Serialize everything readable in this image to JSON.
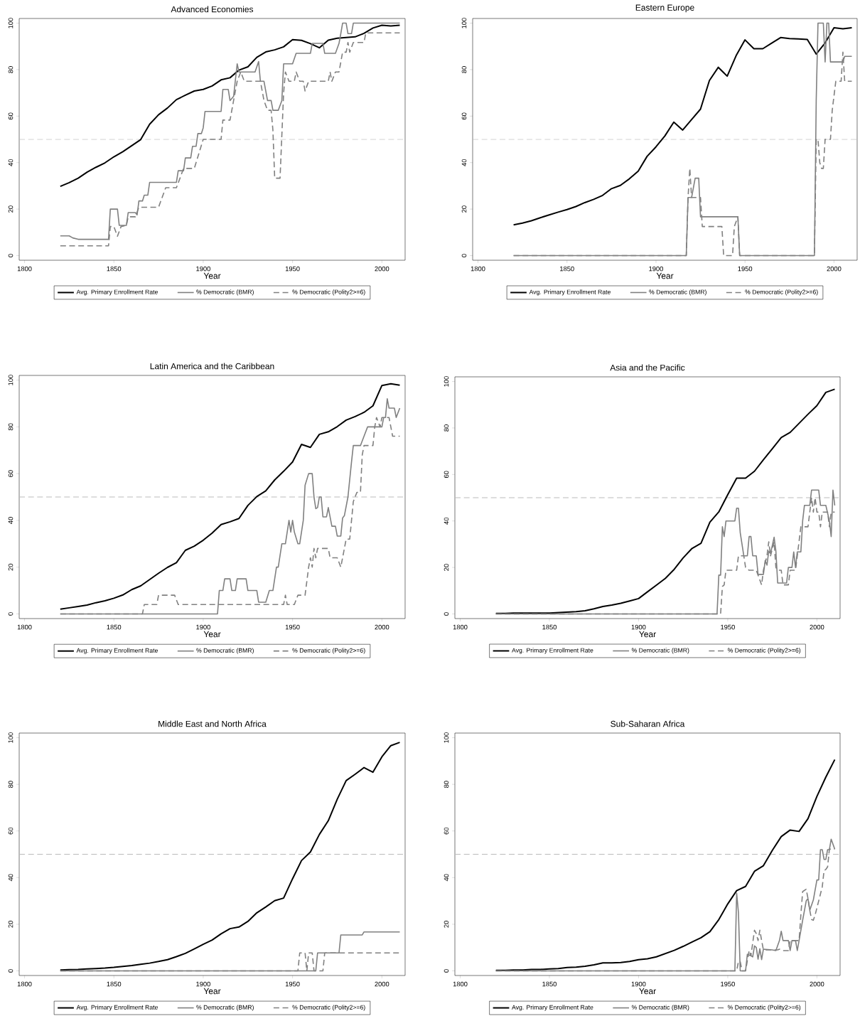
{
  "chart_data": [
    {
      "type": "line",
      "title": "Advanced Economies",
      "xlabel": "Year",
      "xlim": [
        1797,
        2013
      ],
      "ylim": [
        -2,
        102
      ],
      "xticks": [
        1800,
        1850,
        1900,
        1950,
        2000
      ],
      "yticks": [
        0,
        20,
        40,
        60,
        80,
        100
      ],
      "legend": "bottom",
      "ref_lines": [
        {
          "axis": "y",
          "value": 50,
          "color": "#bbbbbb",
          "line_style": "dashed"
        }
      ],
      "series": [
        {
          "name": "Avg. Primary Enrollment Rate",
          "color": "#000000",
          "line_style": "solid",
          "x": [
            1820,
            1825,
            1830,
            1835,
            1840,
            1845,
            1850,
            1855,
            1860,
            1865,
            1870,
            1875,
            1880,
            1885,
            1890,
            1895,
            1900,
            1905,
            1910,
            1915,
            1920,
            1925,
            1930,
            1935,
            1940,
            1945,
            1950,
            1955,
            1960,
            1965,
            1970,
            1975,
            1980,
            1985,
            1990,
            1995,
            2000,
            2005,
            2010
          ],
          "values": [
            29.8,
            31.4,
            33.3,
            35.9,
            38,
            39.9,
            42.5,
            44.7,
            47.3,
            49.9,
            56.5,
            60.6,
            63.5,
            67.1,
            69,
            70.8,
            71.5,
            73,
            75.6,
            76.5,
            79.8,
            81.2,
            85.3,
            87.6,
            88.5,
            89.8,
            92.9,
            92.6,
            91.2,
            89.4,
            92.7,
            93.5,
            93.8,
            94.1,
            95.6,
            97.9,
            99.1,
            98.8,
            99.1
          ]
        },
        {
          "name": "% Democratic (BMR)",
          "color": "#808080",
          "line_style": "solid",
          "x": [
            1820,
            1825,
            1827,
            1830,
            1847,
            1848,
            1852,
            1853,
            1857,
            1858,
            1862,
            1863,
            1864,
            1866,
            1867,
            1869,
            1870,
            1885,
            1886,
            1889,
            1890,
            1893,
            1894,
            1896,
            1897,
            1899,
            1900,
            1901,
            1910,
            1911,
            1914,
            1915,
            1917,
            1919,
            1920,
            1929,
            1931,
            1932,
            1934,
            1936,
            1938,
            1939,
            1942,
            1944,
            1945,
            1950,
            1952,
            1960,
            1961,
            1967,
            1968,
            1974,
            1976,
            1977,
            1978,
            1980,
            1981,
            1983,
            1984,
            2010
          ],
          "values": [
            8.5,
            8.5,
            7.6,
            7,
            7,
            20,
            20,
            13,
            13,
            18.5,
            18.5,
            17.5,
            23.5,
            23.5,
            26,
            26,
            31.5,
            31.5,
            36.5,
            36.5,
            42,
            42,
            47,
            47,
            52.5,
            52.5,
            55,
            62,
            62,
            71.5,
            71.5,
            66.7,
            68.5,
            82.5,
            79,
            79,
            83.5,
            75,
            75,
            66.7,
            66.7,
            62.5,
            62.5,
            66.7,
            82.5,
            82.5,
            87,
            87,
            91.3,
            91.3,
            87,
            87,
            91.3,
            95.5,
            100,
            100,
            95.5,
            95.5,
            100,
            100
          ]
        },
        {
          "name": "% Democratic (Polity2>=6)",
          "color": "#808080",
          "line_style": "dashed",
          "x": [
            1820,
            1847,
            1848,
            1850,
            1852,
            1854,
            1857,
            1858,
            1862,
            1864,
            1875,
            1877,
            1879,
            1885,
            1887,
            1889,
            1895,
            1898,
            1900,
            1910,
            1911,
            1915,
            1917,
            1919,
            1921,
            1923,
            1932,
            1934,
            1936,
            1938,
            1939,
            1940,
            1943,
            1945,
            1946,
            1948,
            1951,
            1952,
            1954,
            1956,
            1957,
            1959,
            1970,
            1971,
            1972,
            1974,
            1976,
            1978,
            1980,
            1981,
            1982,
            1984,
            1990,
            1991,
            2010
          ],
          "values": [
            4.2,
            4.2,
            12.5,
            12.5,
            8.3,
            12.5,
            13,
            16.7,
            16.7,
            20.8,
            20.8,
            25,
            29.2,
            29.2,
            33.3,
            37.5,
            37.5,
            45,
            50,
            50,
            58.3,
            58.3,
            66.7,
            75,
            79,
            75,
            75,
            66.7,
            62.5,
            62.5,
            54,
            33.3,
            33.3,
            70,
            79,
            75,
            75,
            79,
            75,
            75,
            70.8,
            75,
            75,
            79,
            75,
            79,
            79,
            87.5,
            87.5,
            91.7,
            87.5,
            91.7,
            91.7,
            95.8,
            95.8
          ]
        }
      ]
    },
    {
      "type": "line",
      "title": "Eastern Europe",
      "xlabel": "Year",
      "xlim": [
        1797,
        2013
      ],
      "ylim": [
        -2,
        102
      ],
      "xticks": [
        1800,
        1850,
        1900,
        1950,
        2000
      ],
      "yticks": [
        0,
        20,
        40,
        60,
        80,
        100
      ],
      "legend": "bottom",
      "ref_lines": [
        {
          "axis": "y",
          "value": 50,
          "color": "#bbbbbb",
          "line_style": "dashed"
        }
      ],
      "series": [
        {
          "name": "Avg. Primary Enrollment Rate",
          "color": "#000000",
          "line_style": "solid",
          "x": [
            1820,
            1825,
            1830,
            1835,
            1840,
            1845,
            1850,
            1855,
            1860,
            1865,
            1870,
            1875,
            1880,
            1885,
            1890,
            1895,
            1900,
            1905,
            1910,
            1915,
            1920,
            1925,
            1930,
            1935,
            1940,
            1945,
            1950,
            1955,
            1960,
            1965,
            1970,
            1975,
            1980,
            1985,
            1990,
            1995,
            2000,
            2005,
            2010
          ],
          "values": [
            13.2,
            14,
            15,
            16.3,
            17.5,
            18.7,
            19.8,
            21.1,
            22.8,
            24.2,
            25.9,
            28.8,
            30.2,
            33,
            36.3,
            42.7,
            46.8,
            51.5,
            57.4,
            54,
            58.5,
            63,
            75.3,
            81,
            77.2,
            86,
            92.8,
            89,
            89,
            91.4,
            93.8,
            93.4,
            93.2,
            93,
            86.7,
            91.5,
            98,
            97.6,
            98
          ]
        },
        {
          "name": "% Democratic (BMR)",
          "color": "#808080",
          "line_style": "solid",
          "x": [
            1820,
            1917,
            1918,
            1920,
            1922,
            1924,
            1925,
            1946,
            1947,
            1989,
            1990,
            1991,
            1994,
            1995,
            1996,
            1997,
            1998,
            2005,
            2006,
            2010
          ],
          "values": [
            0,
            0,
            25,
            25,
            33.3,
            33.3,
            16.7,
            16.7,
            0,
            0,
            66.7,
            100,
            100,
            83.3,
            100,
            100,
            83.3,
            83.3,
            85.7,
            85.7
          ]
        },
        {
          "name": "% Democratic (Polity2>=6)",
          "color": "#808080",
          "line_style": "dashed",
          "x": [
            1820,
            1917,
            1918,
            1919,
            1920,
            1925,
            1926,
            1937,
            1938,
            1943,
            1944,
            1946,
            1947,
            1989,
            1990,
            1991,
            1992,
            1993,
            1994,
            1995,
            1998,
            1999,
            2001,
            2004,
            2005,
            2006,
            2010
          ],
          "values": [
            0,
            0,
            25,
            37.5,
            25,
            25,
            12.5,
            12.5,
            0,
            0,
            12.5,
            16.7,
            0,
            0,
            50,
            50,
            40,
            37.5,
            37.5,
            50,
            50,
            62.5,
            75,
            75,
            87.5,
            75,
            75
          ]
        }
      ]
    },
    {
      "type": "line",
      "title": "Latin America and the Caribbean",
      "xlabel": "Year",
      "xlim": [
        1797,
        2013
      ],
      "ylim": [
        -2,
        102
      ],
      "xticks": [
        1800,
        1850,
        1900,
        1950,
        2000
      ],
      "yticks": [
        0,
        20,
        40,
        60,
        80,
        100
      ],
      "legend": "bottom",
      "ref_lines": [
        {
          "axis": "y",
          "value": 50,
          "color": "#bbbbbb",
          "line_style": "dashed"
        }
      ],
      "series": [
        {
          "name": "Avg. Primary Enrollment Rate",
          "color": "#000000",
          "line_style": "solid",
          "x": [
            1820,
            1825,
            1830,
            1835,
            1840,
            1845,
            1850,
            1855,
            1860,
            1865,
            1870,
            1875,
            1880,
            1885,
            1890,
            1895,
            1900,
            1905,
            1910,
            1915,
            1920,
            1925,
            1930,
            1935,
            1940,
            1945,
            1950,
            1955,
            1960,
            1965,
            1970,
            1975,
            1980,
            1985,
            1990,
            1995,
            2000,
            2005,
            2010
          ],
          "values": [
            2,
            2.6,
            3.2,
            3.8,
            4.8,
            5.6,
            6.7,
            8.1,
            10.4,
            12,
            14.7,
            17.4,
            19.9,
            21.9,
            27.2,
            29,
            31.5,
            34.6,
            38.2,
            39.4,
            40.8,
            46.4,
            50.2,
            52.6,
            57.3,
            61,
            65,
            72.5,
            71.2,
            76.8,
            77.9,
            80.1,
            82.9,
            84.4,
            86.2,
            89,
            97.7,
            98.4,
            97.8
          ]
        },
        {
          "name": "% Democratic (BMR)",
          "color": "#808080",
          "line_style": "solid",
          "x": [
            1820,
            1908,
            1909,
            1911,
            1912,
            1915,
            1916,
            1918,
            1919,
            1924,
            1925,
            1930,
            1931,
            1935,
            1937,
            1939,
            1940,
            1941,
            1942,
            1944,
            1946,
            1948,
            1949,
            1950,
            1951,
            1953,
            1954,
            1956,
            1957,
            1959,
            1961,
            1962,
            1963,
            1964,
            1965,
            1966,
            1967,
            1969,
            1970,
            1972,
            1974,
            1975,
            1977,
            1978,
            1979,
            1981,
            1983,
            1984,
            1988,
            1990,
            1992,
            2000,
            2001,
            2002,
            2003,
            2004,
            2007,
            2008,
            2010
          ],
          "values": [
            0,
            0,
            10,
            10,
            15,
            15,
            10,
            10,
            15,
            15,
            10,
            10,
            5,
            5,
            10,
            10,
            15,
            20,
            20,
            30,
            30,
            40,
            35,
            40,
            35,
            30,
            30,
            40,
            55,
            60,
            60,
            50,
            45,
            45.5,
            50,
            50,
            41.5,
            41.5,
            45.5,
            37.5,
            37.5,
            33.3,
            33.3,
            41,
            42,
            50,
            65,
            72,
            72,
            76,
            80,
            80,
            84,
            84,
            92,
            88,
            88,
            84,
            88
          ]
        },
        {
          "name": "% Democratic (Polity2>=6)",
          "color": "#808080",
          "line_style": "dashed",
          "x": [
            1820,
            1866,
            1867,
            1874,
            1875,
            1884,
            1886,
            1945,
            1946,
            1947,
            1951,
            1953,
            1957,
            1959,
            1960,
            1961,
            1962,
            1963,
            1964,
            1970,
            1971,
            1975,
            1977,
            1978,
            1980,
            1982,
            1984,
            1986,
            1988,
            1989,
            1990,
            1995,
            1996,
            1997,
            1999,
            2000,
            2004,
            2006,
            2010
          ],
          "values": [
            0,
            0,
            4,
            4,
            8,
            8,
            4,
            4,
            8,
            4,
            4,
            8,
            8,
            20,
            24,
            20,
            28,
            24,
            28,
            28,
            24,
            24,
            20,
            24,
            32,
            32,
            48,
            52,
            52,
            68,
            72,
            72,
            80,
            84,
            80,
            84,
            84,
            76,
            76
          ]
        }
      ]
    },
    {
      "type": "line",
      "title": "Asia and the Pacific",
      "xlabel": "Year",
      "xlim": [
        1797,
        2013
      ],
      "ylim": [
        -2,
        102
      ],
      "xticks": [
        1800,
        1850,
        1900,
        1950,
        2000
      ],
      "yticks": [
        0,
        20,
        40,
        60,
        80,
        100
      ],
      "legend": "bottom",
      "ref_lines": [
        {
          "axis": "y",
          "value": 50,
          "color": "#bbbbbb",
          "line_style": "dashed"
        }
      ],
      "series": [
        {
          "name": "Avg. Primary Enrollment Rate",
          "color": "#000000",
          "line_style": "solid",
          "x": [
            1820,
            1825,
            1830,
            1835,
            1840,
            1845,
            1850,
            1855,
            1860,
            1865,
            1870,
            1875,
            1880,
            1885,
            1890,
            1895,
            1900,
            1905,
            1910,
            1915,
            1920,
            1925,
            1930,
            1935,
            1940,
            1945,
            1950,
            1955,
            1960,
            1965,
            1970,
            1975,
            1980,
            1985,
            1990,
            1995,
            2000,
            2005,
            2010
          ],
          "values": [
            0.2,
            0.2,
            0.4,
            0.4,
            0.4,
            0.4,
            0.4,
            0.6,
            0.8,
            1,
            1.4,
            2.2,
            3.2,
            3.8,
            4.6,
            5.6,
            6.6,
            9.5,
            12.4,
            15.3,
            19.2,
            24.1,
            28.2,
            30.4,
            39.5,
            43.9,
            51.3,
            58.4,
            58.4,
            61.4,
            66.3,
            71.1,
            75.9,
            78.1,
            82,
            85.9,
            89.6,
            95.3,
            96.7
          ]
        },
        {
          "name": "% Democratic (BMR)",
          "color": "#808080",
          "line_style": "solid",
          "x": [
            1820,
            1944,
            1945,
            1946,
            1947,
            1948,
            1949,
            1954,
            1955,
            1956,
            1957,
            1959,
            1961,
            1962,
            1963,
            1964,
            1966,
            1967,
            1970,
            1971,
            1972,
            1973,
            1974,
            1976,
            1977,
            1978,
            1983,
            1984,
            1986,
            1987,
            1988,
            1989,
            1991,
            1992,
            1993,
            1996,
            1997,
            2001,
            2002,
            2005,
            2007,
            2008,
            2009,
            2010
          ],
          "values": [
            0,
            0,
            16.7,
            16.7,
            37.5,
            33.3,
            40,
            40,
            45.5,
            45.5,
            35,
            25,
            25,
            33.3,
            33.3,
            25,
            25,
            17,
            17,
            23,
            21,
            27,
            26,
            33,
            27,
            13.3,
            13.3,
            20,
            20,
            26.7,
            20,
            26.7,
            26.7,
            40,
            46.7,
            46.7,
            53.3,
            53.3,
            46.7,
            46.7,
            40,
            33.3,
            53.3,
            46.7
          ]
        },
        {
          "name": "% Democratic (Polity2>=6)",
          "color": "#808080",
          "line_style": "dashed",
          "x": [
            1820,
            1946,
            1947,
            1948,
            1949,
            1955,
            1956,
            1959,
            1960,
            1962,
            1966,
            1967,
            1969,
            1970,
            1971,
            1972,
            1973,
            1974,
            1976,
            1977,
            1978,
            1980,
            1981,
            1984,
            1985,
            1988,
            1989,
            1991,
            1995,
            1997,
            1998,
            1999,
            2000,
            2001,
            2002,
            2003,
            2006,
            2007,
            2008,
            2010
          ],
          "values": [
            0,
            0,
            11.8,
            12.5,
            18.8,
            18.8,
            25,
            25,
            20,
            18.8,
            18.8,
            16.7,
            12.5,
            18.8,
            22,
            25,
            31,
            25,
            31,
            20,
            18.8,
            18.8,
            12.5,
            12.5,
            18.8,
            18.8,
            25,
            37.5,
            37.5,
            50,
            43.8,
            50,
            43.8,
            43.8,
            37.5,
            43.8,
            43.8,
            37.5,
            43.8,
            43.8
          ]
        }
      ]
    },
    {
      "type": "line",
      "title": "Middle East and North Africa",
      "xlabel": "Year",
      "xlim": [
        1797,
        2013
      ],
      "ylim": [
        -2,
        102
      ],
      "xticks": [
        1800,
        1850,
        1900,
        1950,
        2000
      ],
      "yticks": [
        0,
        20,
        40,
        60,
        80,
        100
      ],
      "legend": "bottom",
      "ref_lines": [
        {
          "axis": "y",
          "value": 50,
          "color": "#bbbbbb",
          "line_style": "dashed"
        }
      ],
      "series": [
        {
          "name": "Avg. Primary Enrollment Rate",
          "color": "#000000",
          "line_style": "solid",
          "x": [
            1820,
            1825,
            1830,
            1835,
            1840,
            1845,
            1850,
            1855,
            1860,
            1865,
            1870,
            1875,
            1880,
            1885,
            1890,
            1895,
            1900,
            1905,
            1910,
            1915,
            1920,
            1925,
            1930,
            1935,
            1940,
            1945,
            1950,
            1955,
            1960,
            1965,
            1970,
            1975,
            1980,
            1985,
            1990,
            1995,
            2000,
            2005,
            2010
          ],
          "values": [
            0.4,
            0.5,
            0.6,
            0.8,
            1,
            1.2,
            1.5,
            1.9,
            2.3,
            2.8,
            3.3,
            4,
            4.8,
            6.1,
            7.5,
            9.4,
            11.4,
            13.2,
            15.9,
            18.1,
            18.8,
            21.2,
            24.9,
            27.4,
            30.1,
            31.2,
            39.5,
            47.3,
            51,
            58.5,
            64.4,
            73.6,
            81.6,
            84.3,
            87.2,
            85.2,
            91.8,
            96.6,
            98
          ]
        },
        {
          "name": "% Democratic (BMR)",
          "color": "#808080",
          "line_style": "solid",
          "x": [
            1820,
            1963,
            1964,
            1976,
            1977,
            1989,
            1990,
            2010
          ],
          "values": [
            0,
            0,
            7.7,
            7.7,
            15.4,
            15.4,
            16.7,
            16.7
          ]
        },
        {
          "name": "% Democratic (Polity2>=6)",
          "color": "#808080",
          "line_style": "dashed",
          "x": [
            1820,
            1953,
            1954,
            1957,
            1958,
            1959,
            1961,
            1962,
            1967,
            1968,
            2010
          ],
          "values": [
            0,
            0,
            7.7,
            7.7,
            0,
            7.7,
            7.7,
            0,
            0,
            7.7,
            7.7
          ]
        }
      ]
    },
    {
      "type": "line",
      "title": "Sub-Saharan Africa",
      "xlabel": "Year",
      "xlim": [
        1797,
        2013
      ],
      "ylim": [
        -2,
        102
      ],
      "xticks": [
        1800,
        1850,
        1900,
        1950,
        2000
      ],
      "yticks": [
        0,
        20,
        40,
        60,
        80,
        100
      ],
      "legend": "bottom",
      "ref_lines": [
        {
          "axis": "y",
          "value": 50,
          "color": "#bbbbbb",
          "line_style": "dashed"
        }
      ],
      "series": [
        {
          "name": "Avg. Primary Enrollment Rate",
          "color": "#000000",
          "line_style": "solid",
          "x": [
            1820,
            1825,
            1830,
            1835,
            1840,
            1845,
            1850,
            1855,
            1860,
            1865,
            1870,
            1875,
            1880,
            1885,
            1890,
            1895,
            1900,
            1905,
            1910,
            1915,
            1920,
            1925,
            1930,
            1935,
            1940,
            1945,
            1950,
            1955,
            1960,
            1965,
            1970,
            1975,
            1980,
            1985,
            1990,
            1995,
            2000,
            2005,
            2010
          ],
          "values": [
            0.2,
            0.2,
            0.4,
            0.4,
            0.6,
            0.6,
            0.8,
            1,
            1.4,
            1.6,
            2,
            2.6,
            3.4,
            3.4,
            3.6,
            4,
            4.8,
            5.2,
            6,
            7.4,
            8.8,
            10.5,
            12.4,
            14.2,
            16.8,
            22,
            28.7,
            34.4,
            36.2,
            42.7,
            45.1,
            51.7,
            57.6,
            60.4,
            59.8,
            65.3,
            74.8,
            83.1,
            90.6
          ]
        },
        {
          "name": "% Democratic (BMR)",
          "color": "#808080",
          "line_style": "solid",
          "x": [
            1820,
            1954,
            1955,
            1956,
            1957,
            1960,
            1961,
            1963,
            1964,
            1965,
            1966,
            1967,
            1968,
            1969,
            1970,
            1975,
            1977,
            1979,
            1980,
            1981,
            1984,
            1985,
            1986,
            1988,
            1989,
            1990,
            1992,
            1994,
            1995,
            1996,
            1998,
            2000,
            2001,
            2002,
            2003,
            2004,
            2005,
            2006,
            2007,
            2008,
            2010
          ],
          "values": [
            0,
            0,
            33.3,
            25,
            0,
            0,
            7.1,
            6.5,
            6,
            10.7,
            10,
            5,
            9.5,
            4.8,
            9.3,
            9,
            8.7,
            13,
            17,
            13,
            13,
            8.7,
            13,
            13,
            8.7,
            13,
            21.7,
            30,
            31,
            26,
            30.4,
            39,
            39,
            52,
            52,
            47.8,
            47.8,
            52,
            52,
            56.5,
            52.2
          ]
        },
        {
          "name": "% Democratic (Polity2>=6)",
          "color": "#808080",
          "line_style": "dashed",
          "x": [
            1820,
            1955,
            1956,
            1957,
            1958,
            1960,
            1962,
            1963,
            1965,
            1966,
            1967,
            1968,
            1969,
            1970,
            1978,
            1979,
            1981,
            1984,
            1985,
            1990,
            1991,
            1992,
            1994,
            1995,
            1996,
            1997,
            1998,
            1999,
            2001,
            2003,
            2004,
            2005,
            2006,
            2007,
            2010
          ],
          "values": [
            0,
            0,
            4,
            4,
            0,
            0,
            8.7,
            6.5,
            17.4,
            16,
            13,
            17.4,
            13,
            9,
            9,
            9.3,
            8.7,
            8.7,
            13,
            13,
            24,
            34,
            35,
            31,
            26,
            22,
            21.7,
            24,
            30,
            36,
            43,
            43.5,
            44.6,
            52.2,
            52.2
          ]
        }
      ]
    }
  ]
}
